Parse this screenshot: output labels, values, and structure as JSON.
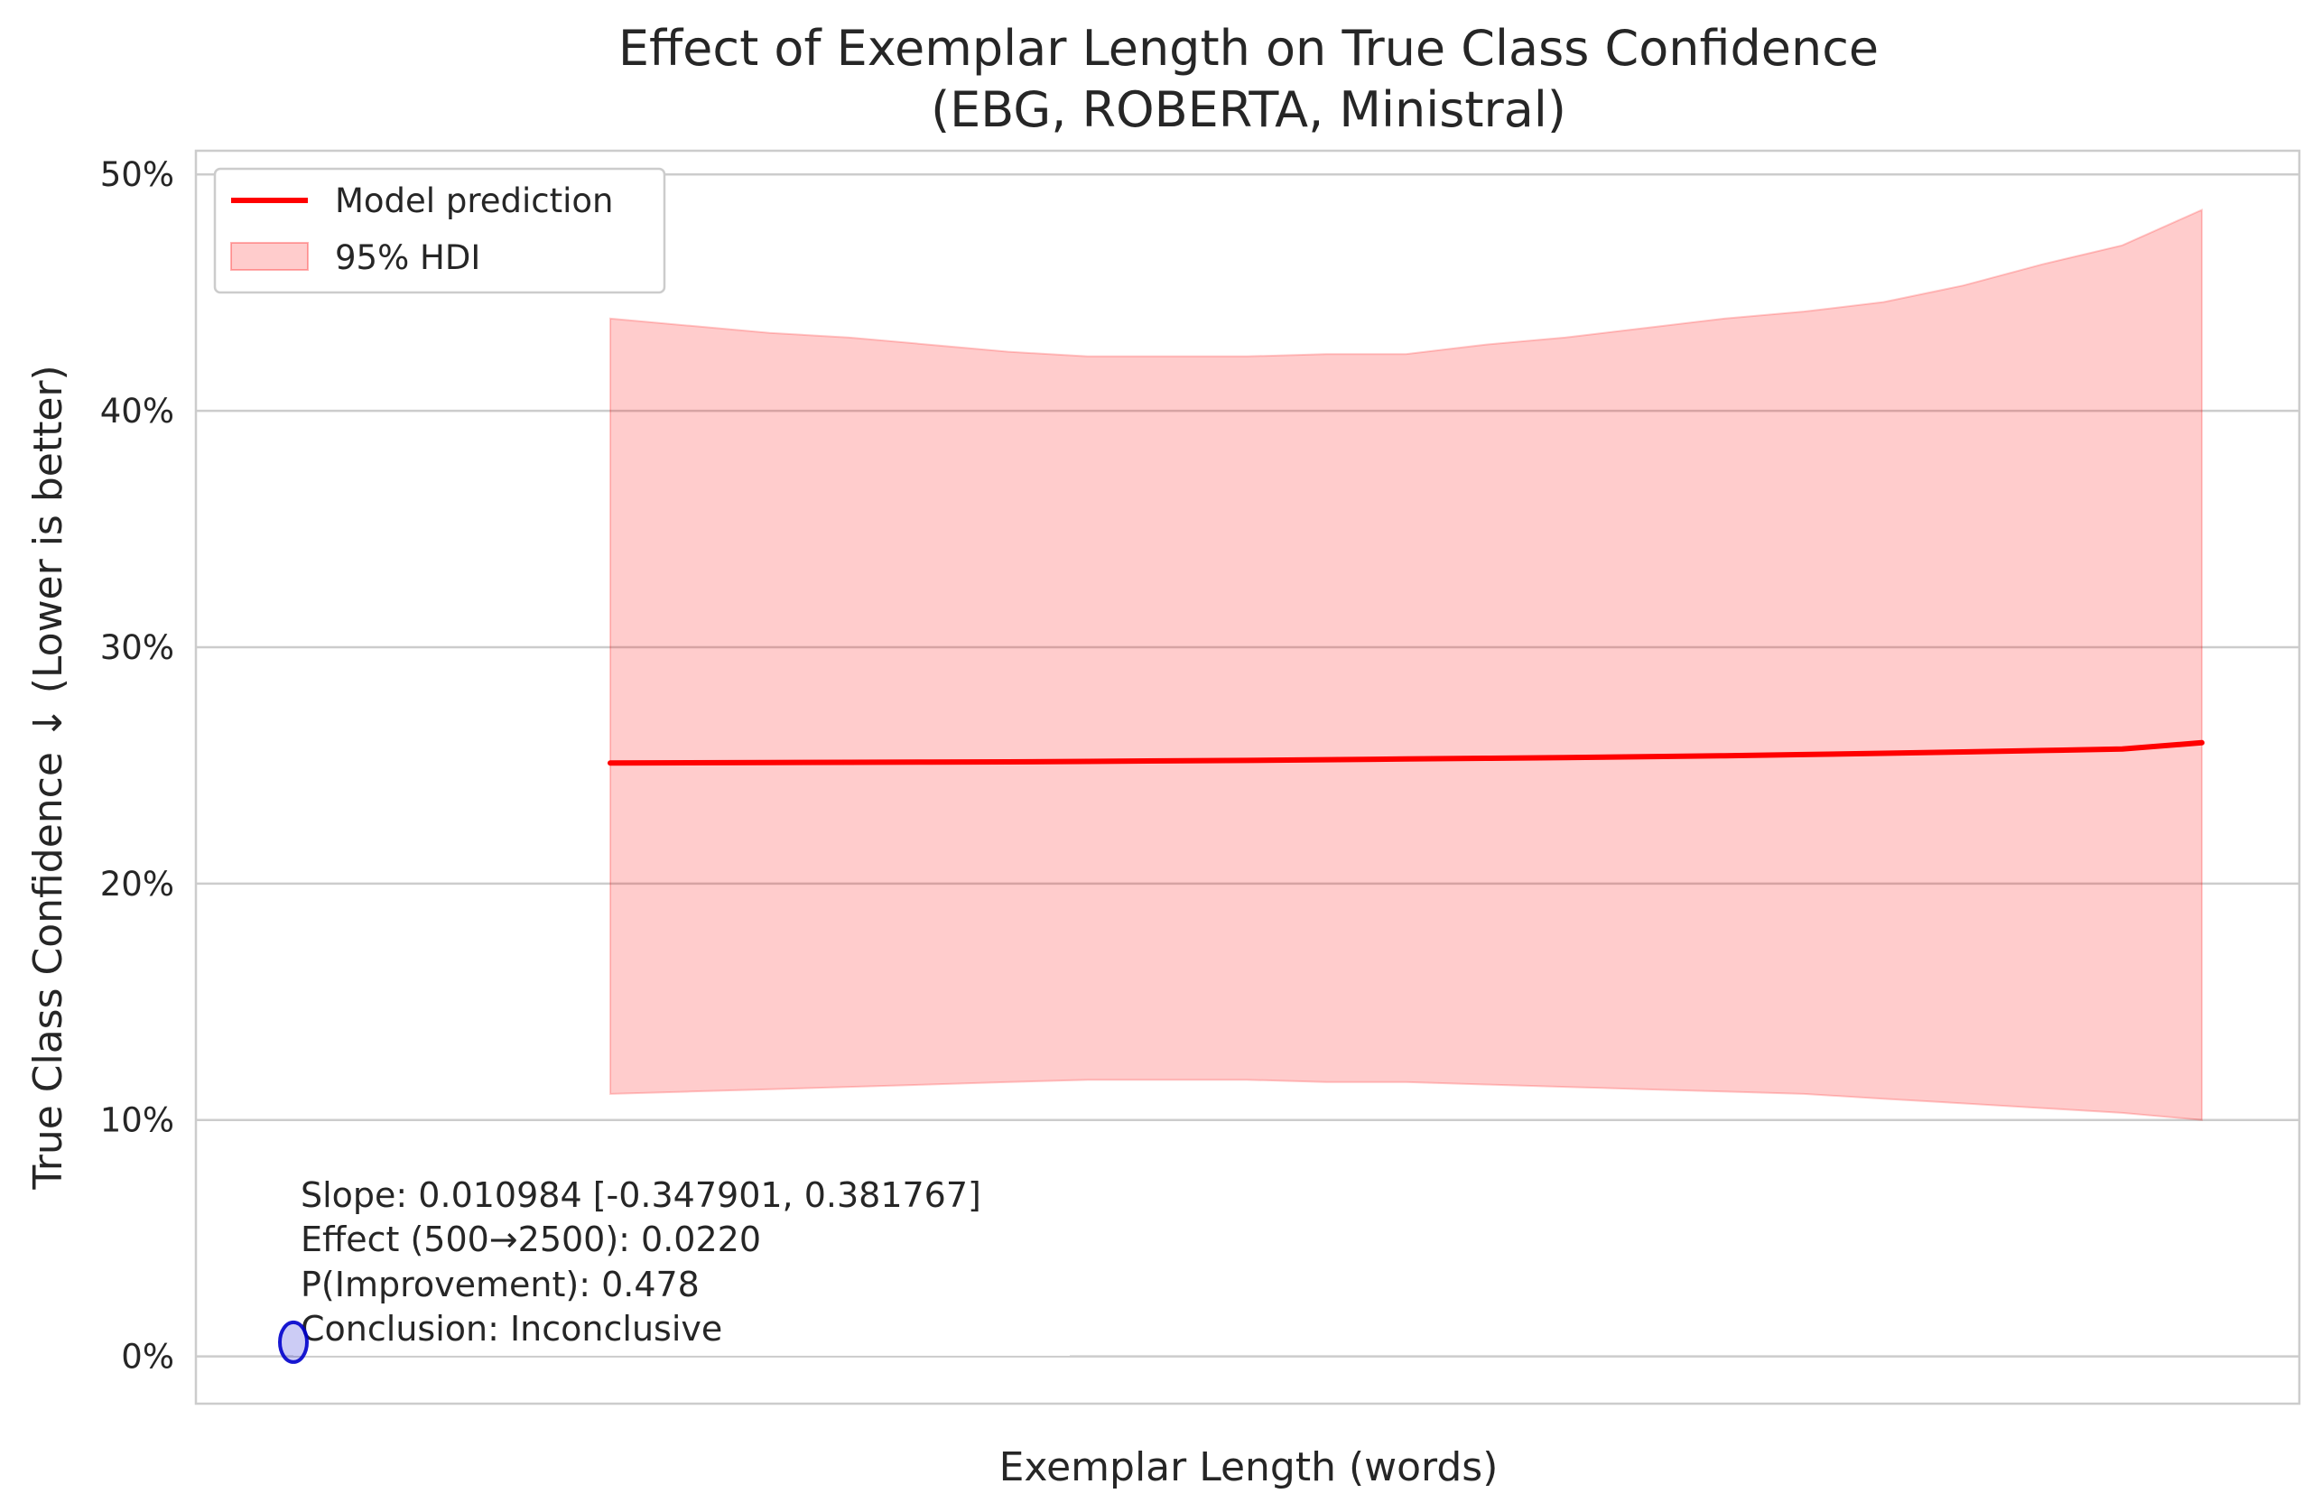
{
  "chart_data": {
    "type": "line",
    "title": "Effect of Exemplar Length on True Class Confidence",
    "subtitle": "(EBG, ROBERTA, Ministral)",
    "xlabel": "Exemplar Length (words)",
    "ylabel": "True Class Confidence ↓ (Lower is better)",
    "ylim": [
      -0.02,
      0.51
    ],
    "y_ticks": [
      0.0,
      0.1,
      0.2,
      0.3,
      0.4,
      0.5
    ],
    "y_tick_labels": [
      "0%",
      "10%",
      "20%",
      "30%",
      "40%",
      "50%"
    ],
    "x_tick_labels": [],
    "grid": true,
    "legend_position": "top-left",
    "x": [
      0.0,
      0.05,
      0.1,
      0.15,
      0.2,
      0.25,
      0.3,
      0.35,
      0.4,
      0.45,
      0.5,
      0.55,
      0.6,
      0.65,
      0.7,
      0.75,
      0.8,
      0.85,
      0.9,
      0.95,
      1.0
    ],
    "series": [
      {
        "name": "Model prediction",
        "color": "#ff0000",
        "values": [
          0.251,
          0.2511,
          0.2512,
          0.2513,
          0.2514,
          0.2515,
          0.2517,
          0.2519,
          0.2521,
          0.2524,
          0.2527,
          0.253,
          0.2533,
          0.2537,
          0.2541,
          0.2546,
          0.2551,
          0.2557,
          0.2563,
          0.2569,
          0.2596
        ]
      },
      {
        "name": "95% HDI",
        "color": "#ff0000",
        "upper": [
          0.439,
          0.436,
          0.433,
          0.431,
          0.428,
          0.425,
          0.423,
          0.423,
          0.423,
          0.424,
          0.424,
          0.428,
          0.431,
          0.435,
          0.439,
          0.442,
          0.446,
          0.453,
          0.462,
          0.47,
          0.485
        ],
        "lower": [
          0.111,
          0.112,
          0.113,
          0.114,
          0.115,
          0.116,
          0.117,
          0.117,
          0.117,
          0.116,
          0.116,
          0.115,
          0.114,
          0.113,
          0.112,
          0.111,
          0.109,
          0.107,
          0.105,
          0.103,
          0.1
        ]
      }
    ],
    "points": [
      {
        "y": 0.006,
        "color": "#0000cc"
      }
    ],
    "annotations": {
      "slope": "Slope: 0.010984 [-0.347901, 0.381767]",
      "effect": "Effect (500→2500): 0.0220",
      "prob": "P(Improvement): 0.478",
      "conclusion": "Conclusion: Inconclusive"
    }
  }
}
